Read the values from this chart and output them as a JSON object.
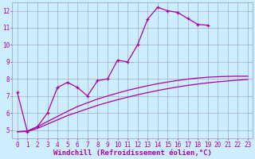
{
  "x_values": [
    0,
    1,
    2,
    3,
    4,
    5,
    6,
    7,
    8,
    9,
    10,
    11,
    12,
    13,
    14,
    15,
    16,
    17,
    18,
    19,
    20,
    21,
    22,
    23
  ],
  "line_zigzag": [
    7.2,
    4.9,
    5.2,
    6.0,
    7.5,
    7.8,
    7.5,
    7.0,
    7.9,
    8.0,
    9.1,
    9.0,
    10.0,
    11.5,
    12.2,
    12.0,
    11.9,
    11.55,
    11.2,
    11.15,
    null,
    null,
    null,
    null
  ],
  "line_smooth1": [
    4.9,
    4.92,
    5.1,
    5.35,
    5.6,
    5.85,
    6.05,
    6.25,
    6.45,
    6.62,
    6.78,
    6.93,
    7.07,
    7.2,
    7.32,
    7.43,
    7.53,
    7.62,
    7.7,
    7.77,
    7.83,
    7.88,
    7.93,
    7.97
  ],
  "line_smooth2": [
    4.9,
    4.95,
    5.2,
    5.5,
    5.8,
    6.1,
    6.38,
    6.6,
    6.82,
    7.0,
    7.17,
    7.33,
    7.47,
    7.6,
    7.72,
    7.82,
    7.91,
    7.99,
    8.05,
    8.1,
    8.13,
    8.15,
    8.16,
    8.16
  ],
  "line_color": "#aa00aa",
  "bg_color": "#cceeff",
  "grid_color": "#9999bb",
  "xlabel": "Windchill (Refroidissement éolien,°C)",
  "xlabel_color": "#aa00aa",
  "xlabel_fontsize": 6.5,
  "tick_color": "#aa00aa",
  "tick_fontsize": 5.5,
  "ylim": [
    4.5,
    12.5
  ],
  "yticks": [
    5,
    6,
    7,
    8,
    9,
    10,
    11,
    12
  ],
  "xlim": [
    -0.5,
    23.5
  ],
  "xticks": [
    0,
    1,
    2,
    3,
    4,
    5,
    6,
    7,
    8,
    9,
    10,
    11,
    12,
    13,
    14,
    15,
    16,
    17,
    18,
    19,
    20,
    21,
    22,
    23
  ]
}
